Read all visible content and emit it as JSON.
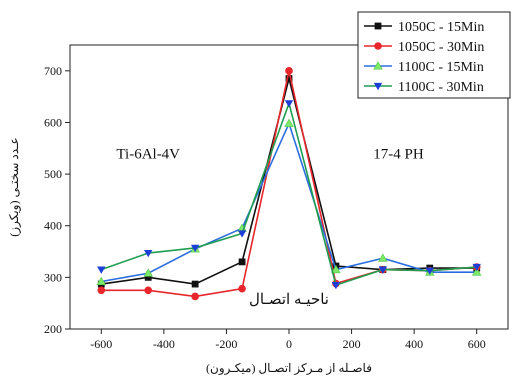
{
  "chart_data": {
    "type": "line",
    "title": "",
    "xlabel": "فاصـله از مـرکز اتصـال (میکـرون)",
    "ylabel": "عـدد سختـی (ویکرز)",
    "xlim": [
      -700,
      700
    ],
    "ylim": [
      200,
      750
    ],
    "xticks": [
      -600,
      -400,
      -200,
      0,
      200,
      400,
      600
    ],
    "yticks": [
      200,
      300,
      400,
      500,
      600,
      700
    ],
    "x": [
      -600,
      -450,
      -300,
      -150,
      0,
      150,
      300,
      450,
      600
    ],
    "grid": false,
    "legend_position": "top-right",
    "series": [
      {
        "name": "1050C - 15Min",
        "color": "#111111",
        "marker": "square",
        "values": [
          287,
          300,
          287,
          330,
          685,
          322,
          315,
          318,
          318
        ]
      },
      {
        "name": "1050C - 30Min",
        "color": "#e8262b",
        "marker": "circle",
        "values": [
          275,
          275,
          263,
          278,
          700,
          288,
          315,
          313,
          320
        ]
      },
      {
        "name": "1100C - 15Min",
        "color": "#2b6ee0",
        "marker": "triangle-up",
        "values": [
          292,
          308,
          355,
          395,
          598,
          315,
          337,
          310,
          310
        ]
      },
      {
        "name": "1100C - 30Min",
        "color": "#1f9e50",
        "marker": "triangle-down",
        "values": [
          315,
          347,
          357,
          385,
          637,
          285,
          315,
          313,
          320
        ]
      }
    ],
    "triangle_up_fill": "#7ee86a",
    "annotations": [
      {
        "text": "Ti-6Al-4V",
        "x": -450,
        "y": 530
      },
      {
        "text": "17-4 PH",
        "x": 350,
        "y": 530
      },
      {
        "text": "ناحیـه اتصـال",
        "x": 0,
        "y": 248
      }
    ]
  }
}
